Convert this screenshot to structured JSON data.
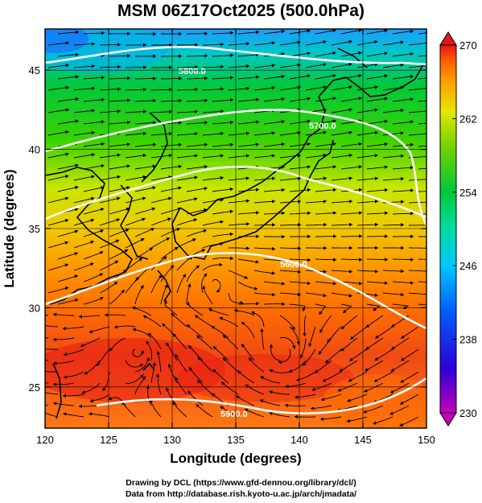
{
  "title": "MSM 06Z17Oct2025 (500.0hPa)",
  "xlabel": "Longitude (degrees)",
  "ylabel": "Latitude  (degrees)",
  "credits": {
    "line1": "Drawing by DCL (https://www.gfd-dennou.org/library/dcl/)",
    "line2": "Data from http://database.rish.kyoto-u.ac.jp/arch/jmadata/"
  },
  "chart_data": {
    "type": "heatmap",
    "xlim": [
      120,
      150
    ],
    "ylim": [
      22.4,
      47.6
    ],
    "x_ticks": [
      "120",
      "125",
      "130",
      "135",
      "140",
      "145",
      "150"
    ],
    "y_ticks": [
      "25",
      "30",
      "35",
      "40",
      "45"
    ],
    "colorbar": {
      "min": 230,
      "max": 270,
      "tick_labels": [
        "270",
        "262",
        "254",
        "246",
        "238",
        "230"
      ],
      "colors": [
        "#c400b8",
        "#2a00d8",
        "#0060ff",
        "#00c8ff",
        "#00dca0",
        "#00c83c",
        "#6ed200",
        "#e6e600",
        "#ffa000",
        "#ff5a00",
        "#e61414"
      ]
    },
    "contour_labels": [
      "5800.0",
      "5700.0",
      "5600.0",
      "5700.0",
      "5800.0",
      "5900.0"
    ],
    "grid": true
  }
}
